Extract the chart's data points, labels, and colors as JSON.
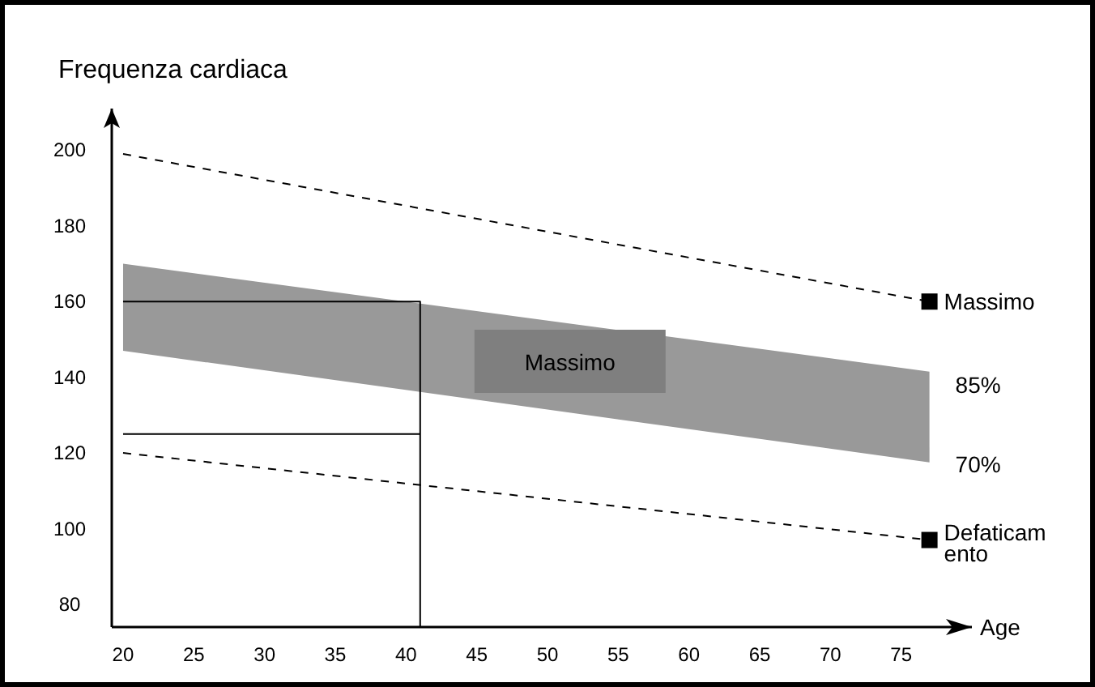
{
  "chart_data": {
    "type": "line",
    "ylabel": "Frequenza cardiaca",
    "xlabel": "Age",
    "xlim": [
      19.2,
      80
    ],
    "ylim": [
      74,
      211
    ],
    "xticks": [
      20,
      25,
      30,
      35,
      40,
      45,
      50,
      55,
      60,
      65,
      70,
      75
    ],
    "yticks": [
      80,
      100,
      120,
      140,
      160,
      180,
      200
    ],
    "grid": false,
    "series": [
      {
        "x": [
          20,
          77
        ],
        "values": [
          null,
          null
        ],
        "lower": [
          147,
          117.5
        ],
        "upper": [
          170,
          141.5
        ],
        "color": "#999999"
      },
      {
        "name": "Massimo",
        "x": [
          20,
          77
        ],
        "values": [
          199,
          160
        ],
        "color": "#000000",
        "line_style": "dashed",
        "marker": "square"
      },
      {
        "name": "Defaticamento",
        "x": [
          20,
          77
        ],
        "values": [
          120,
          97
        ],
        "color": "#000000",
        "line_style": "dashed",
        "marker": "square"
      },
      {
        "x": [
          20,
          41,
          41
        ],
        "values": [
          160,
          160,
          74
        ],
        "color": "#000000",
        "line_style": "solid",
        "marker": "none"
      },
      {
        "x": [
          20,
          41
        ],
        "values": [
          125,
          125
        ],
        "color": "#000000",
        "line_style": "solid",
        "marker": "none"
      }
    ],
    "annotations": [
      "Massimo",
      "85%",
      "70%"
    ]
  }
}
